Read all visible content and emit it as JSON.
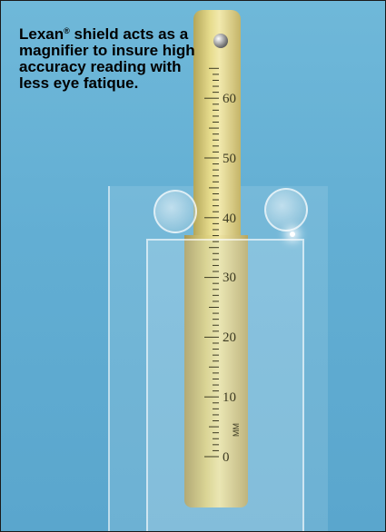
{
  "caption": {
    "text_before": "Lexan",
    "registered_mark": "®",
    "text_after": " shield acts as a magnifier to insure high accuracy reading with less eye fatique."
  },
  "scale": {
    "labels": [
      "60",
      "50",
      "40",
      "30",
      "20",
      "10",
      "0"
    ],
    "unit": "MM"
  },
  "colors": {
    "background": "#62aed3",
    "tube": "#e6db8c",
    "caption": "#000000"
  }
}
